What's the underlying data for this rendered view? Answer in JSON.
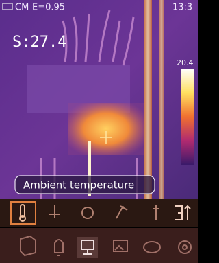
{
  "status_bar": {
    "mode": "CM",
    "emissivity": "E=0.95",
    "time": "13:3"
  },
  "readout": "S:27.4",
  "scale_max": "20.4",
  "tooltip": "Ambient temperature"
}
